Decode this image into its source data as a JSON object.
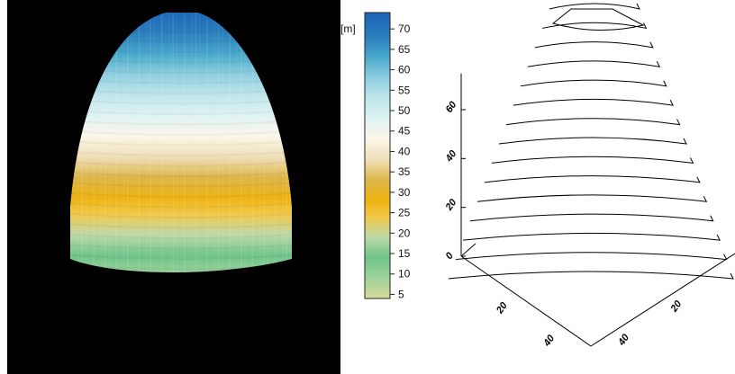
{
  "chart_data": [
    {
      "type": "surface",
      "variable_unit": "[m]",
      "colorbar": {
        "ticks": [
          5,
          10,
          15,
          20,
          25,
          30,
          35,
          40,
          45,
          50,
          55,
          60,
          65,
          70
        ],
        "range": [
          4,
          74
        ],
        "colors": [
          {
            "value": 4,
            "color": "#d6dc9a"
          },
          {
            "value": 9,
            "color": "#9fd29a"
          },
          {
            "value": 14,
            "color": "#6fc48a"
          },
          {
            "value": 19,
            "color": "#bcd9a8"
          },
          {
            "value": 24,
            "color": "#f2c84a"
          },
          {
            "value": 28,
            "color": "#eeb312"
          },
          {
            "value": 33,
            "color": "#ddb64a"
          },
          {
            "value": 38,
            "color": "#eedfb8"
          },
          {
            "value": 43,
            "color": "#fbf6e8"
          },
          {
            "value": 48,
            "color": "#dff3f3"
          },
          {
            "value": 53,
            "color": "#bfe6ea"
          },
          {
            "value": 58,
            "color": "#8fcfe0"
          },
          {
            "value": 63,
            "color": "#49a9cc"
          },
          {
            "value": 68,
            "color": "#2b7fbd"
          },
          {
            "value": 74,
            "color": "#1a63b8"
          }
        ]
      },
      "height_range": [
        4,
        74
      ]
    },
    {
      "type": "contour",
      "z_axis_ticks": [
        0,
        20,
        40,
        60
      ],
      "x_axis_ticks": [
        20,
        40
      ],
      "y_axis_ticks": [
        20,
        40
      ],
      "contour_levels": [
        4,
        9,
        14,
        19,
        24,
        29,
        34,
        39,
        44,
        49,
        54,
        59,
        64,
        69,
        74
      ]
    }
  ]
}
